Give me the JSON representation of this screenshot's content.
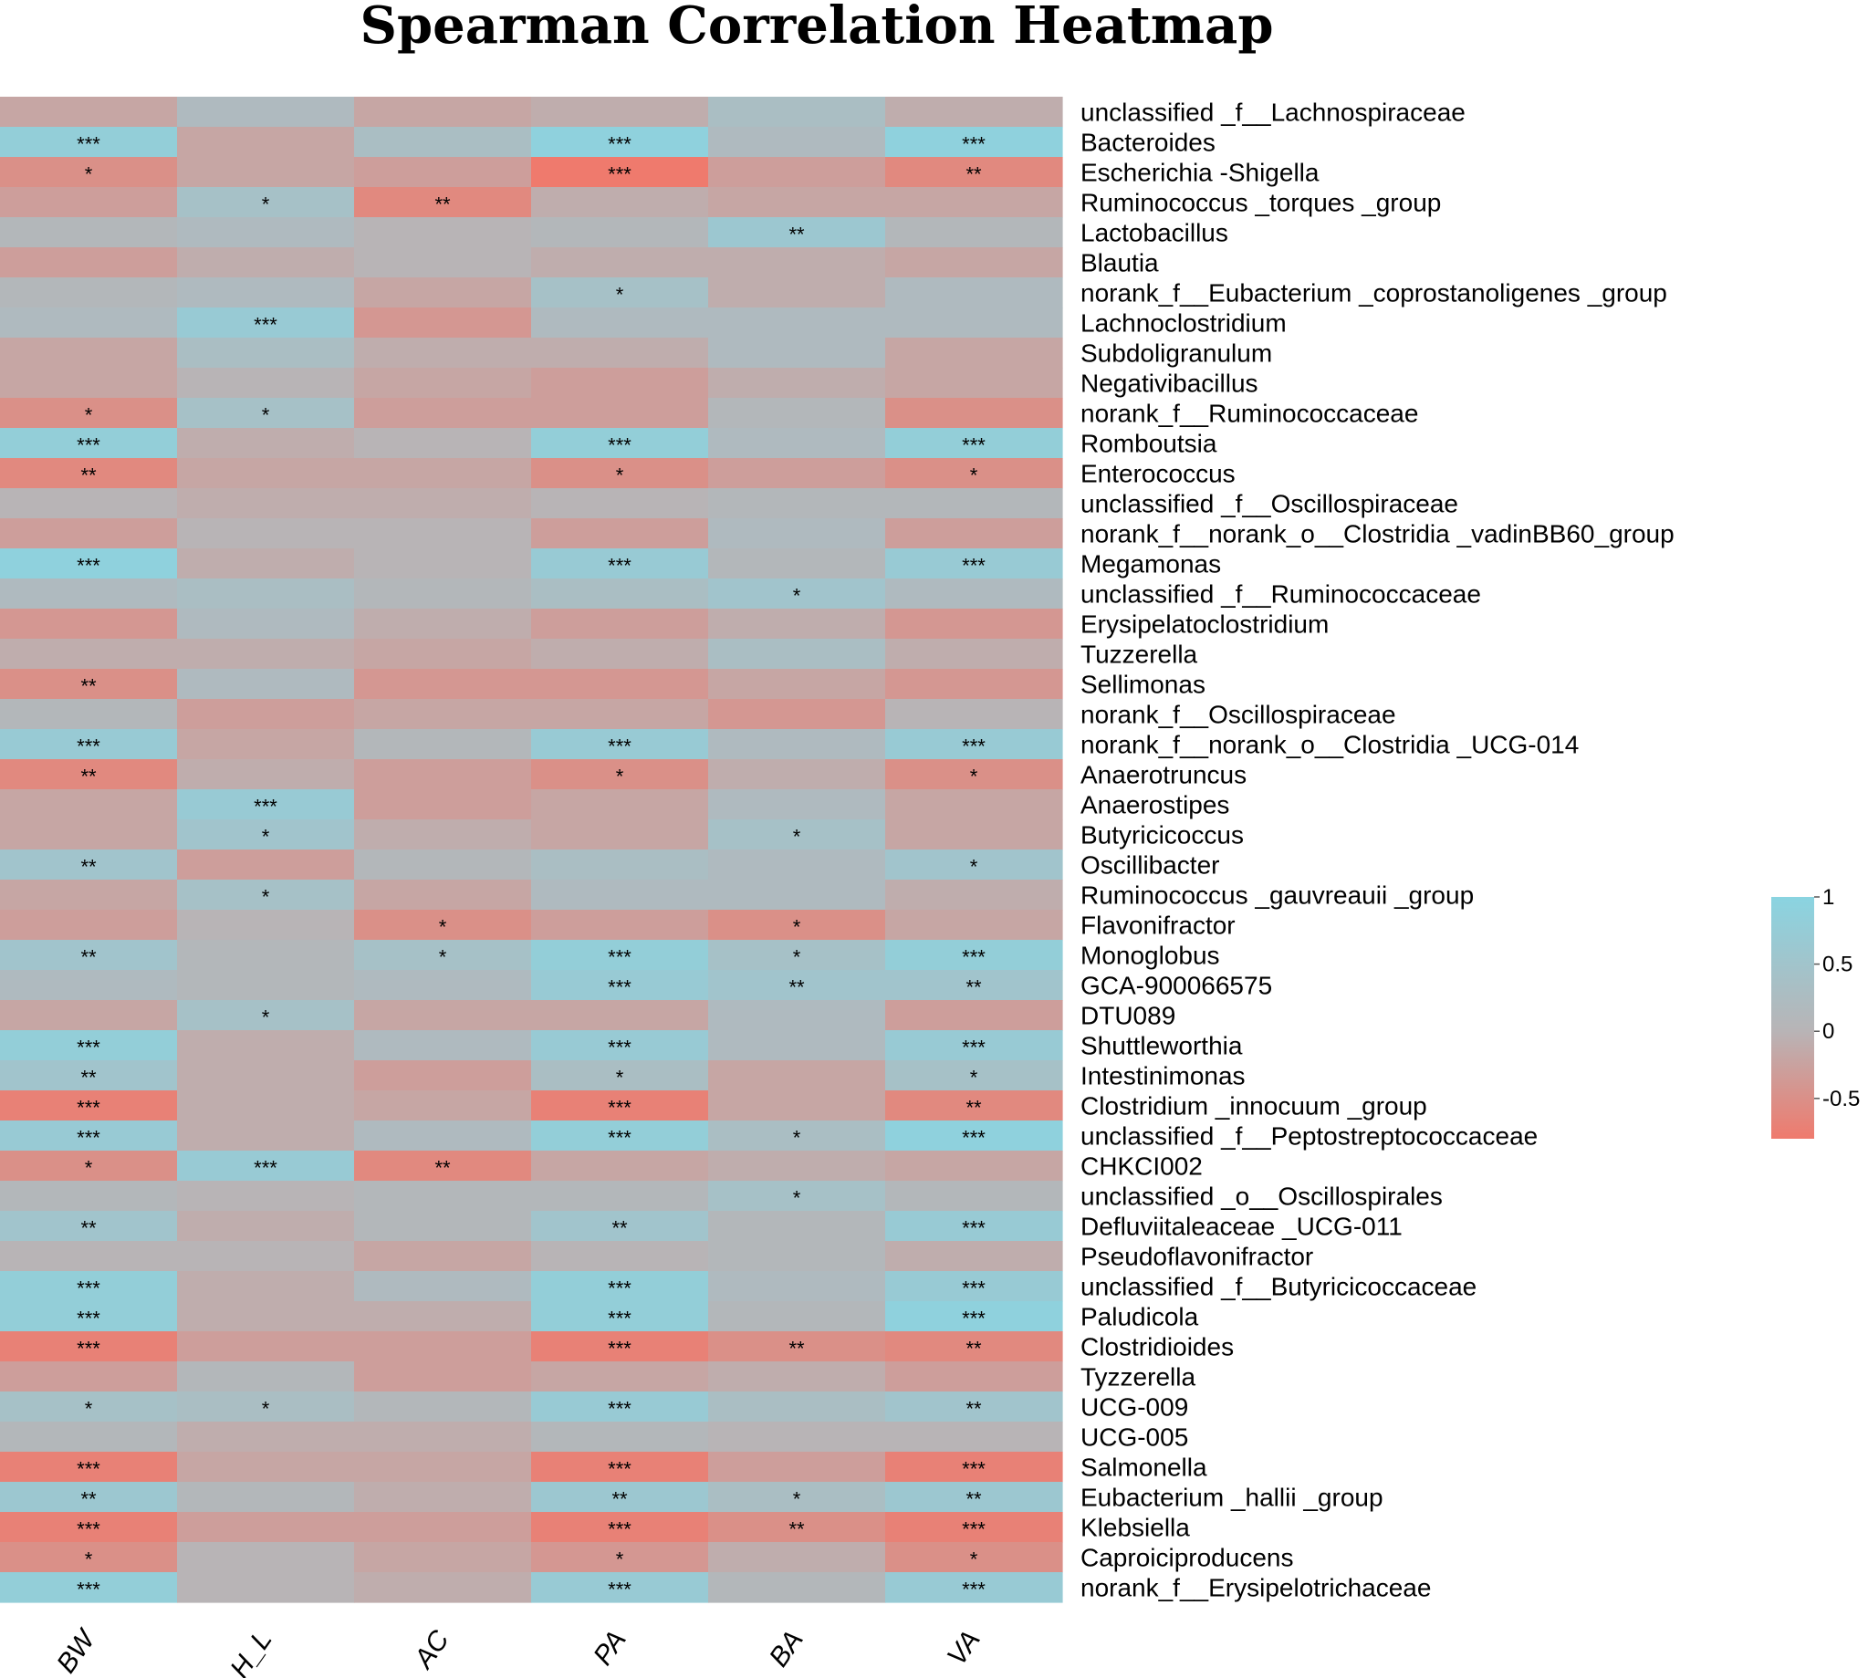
{
  "chart_data": {
    "type": "heatmap",
    "title": "Spearman Correlation Heatmap",
    "columns": [
      "BW",
      "H_L",
      "AC",
      "PA",
      "BA",
      "VA"
    ],
    "rows": [
      {
        "label": "unclassified _f__Lachnospiraceae",
        "values": [
          -0.2,
          0.2,
          -0.2,
          -0.1,
          0.3,
          -0.1
        ],
        "stars": [
          "",
          "",
          "",
          "",
          "",
          ""
        ]
      },
      {
        "label": "Bacteroides",
        "values": [
          0.8,
          -0.2,
          0.3,
          0.9,
          0.2,
          0.9
        ],
        "stars": [
          "***",
          "",
          "",
          "***",
          "",
          "***"
        ]
      },
      {
        "label": "Escherichia -Shigella",
        "values": [
          -0.5,
          -0.2,
          -0.3,
          -0.8,
          -0.3,
          -0.6
        ],
        "stars": [
          "*",
          "",
          "",
          "***",
          "",
          "**"
        ]
      },
      {
        "label": "Ruminococcus _torques _group",
        "values": [
          -0.3,
          0.4,
          -0.6,
          -0.1,
          -0.2,
          -0.2
        ],
        "stars": [
          "",
          "*",
          "**",
          "",
          "",
          ""
        ]
      },
      {
        "label": "Lactobacillus",
        "values": [
          0.1,
          0.2,
          0.0,
          0.1,
          0.6,
          0.1
        ],
        "stars": [
          "",
          "",
          "",
          "",
          "**",
          ""
        ]
      },
      {
        "label": "Blautia",
        "values": [
          -0.3,
          -0.1,
          0.0,
          -0.1,
          -0.1,
          -0.2
        ],
        "stars": [
          "",
          "",
          "",
          "",
          "",
          ""
        ]
      },
      {
        "label": "norank_f__Eubacterium _coprostanoligenes _group",
        "values": [
          0.1,
          0.2,
          -0.2,
          0.4,
          -0.1,
          0.2
        ],
        "stars": [
          "",
          "",
          "",
          "*",
          "",
          ""
        ]
      },
      {
        "label": "Lachnoclostridium",
        "values": [
          0.2,
          0.7,
          -0.4,
          0.2,
          0.2,
          0.2
        ],
        "stars": [
          "",
          "***",
          "",
          "",
          "",
          ""
        ]
      },
      {
        "label": "Subdoligranulum",
        "values": [
          -0.2,
          0.3,
          -0.1,
          -0.1,
          0.2,
          -0.2
        ],
        "stars": [
          "",
          "",
          "",
          "",
          "",
          ""
        ]
      },
      {
        "label": "Negativibacillus",
        "values": [
          -0.2,
          0.0,
          -0.2,
          -0.3,
          -0.1,
          -0.2
        ],
        "stars": [
          "",
          "",
          "",
          "",
          "",
          ""
        ]
      },
      {
        "label": "norank_f__Ruminococcaceae",
        "values": [
          -0.5,
          0.4,
          -0.3,
          -0.3,
          0.1,
          -0.5
        ],
        "stars": [
          "*",
          "*",
          "",
          "",
          "",
          ""
        ]
      },
      {
        "label": "Romboutsia",
        "values": [
          0.8,
          -0.1,
          0.0,
          0.8,
          0.2,
          0.8
        ],
        "stars": [
          "***",
          "",
          "",
          "***",
          "",
          "***"
        ]
      },
      {
        "label": "Enterococcus",
        "values": [
          -0.6,
          -0.2,
          -0.2,
          -0.5,
          -0.3,
          -0.5
        ],
        "stars": [
          "**",
          "",
          "",
          "*",
          "",
          "*"
        ]
      },
      {
        "label": "unclassified _f__Oscillospiraceae",
        "values": [
          0.0,
          -0.1,
          -0.1,
          0.0,
          0.1,
          0.1
        ],
        "stars": [
          "",
          "",
          "",
          "",
          "",
          ""
        ]
      },
      {
        "label": "norank_f__norank_o__Clostridia _vadinBB60_group",
        "values": [
          -0.3,
          0.0,
          0.0,
          -0.3,
          0.2,
          -0.3
        ],
        "stars": [
          "",
          "",
          "",
          "",
          "",
          ""
        ]
      },
      {
        "label": "Megamonas",
        "values": [
          0.9,
          -0.1,
          0.0,
          0.7,
          0.1,
          0.7
        ],
        "stars": [
          "***",
          "",
          "",
          "***",
          "",
          "***"
        ]
      },
      {
        "label": "unclassified _f__Ruminococcaceae",
        "values": [
          0.2,
          0.3,
          0.1,
          0.3,
          0.5,
          0.2
        ],
        "stars": [
          "",
          "",
          "",
          "",
          "*",
          ""
        ]
      },
      {
        "label": "Erysipelatoclostridium",
        "values": [
          -0.4,
          0.2,
          -0.1,
          -0.3,
          -0.1,
          -0.4
        ],
        "stars": [
          "",
          "",
          "",
          "",
          "",
          ""
        ]
      },
      {
        "label": "Tuzzerella",
        "values": [
          -0.1,
          -0.1,
          -0.2,
          -0.1,
          0.3,
          -0.1
        ],
        "stars": [
          "",
          "",
          "",
          "",
          "",
          ""
        ]
      },
      {
        "label": "Sellimonas",
        "values": [
          -0.5,
          0.2,
          -0.4,
          -0.4,
          -0.2,
          -0.4
        ],
        "stars": [
          "**",
          "",
          "",
          "",
          "",
          ""
        ]
      },
      {
        "label": "norank_f__Oscillospiraceae",
        "values": [
          0.1,
          -0.3,
          -0.2,
          -0.2,
          -0.4,
          0.0
        ],
        "stars": [
          "",
          "",
          "",
          "",
          "",
          ""
        ]
      },
      {
        "label": "norank_f__norank_o__Clostridia _UCG-014",
        "values": [
          0.7,
          -0.2,
          0.1,
          0.7,
          0.2,
          0.7
        ],
        "stars": [
          "***",
          "",
          "",
          "***",
          "",
          "***"
        ]
      },
      {
        "label": "Anaerotruncus",
        "values": [
          -0.6,
          -0.1,
          -0.3,
          -0.5,
          -0.1,
          -0.5
        ],
        "stars": [
          "**",
          "",
          "",
          "*",
          "",
          "*"
        ]
      },
      {
        "label": "Anaerostipes",
        "values": [
          -0.2,
          0.7,
          -0.3,
          -0.2,
          0.2,
          -0.2
        ],
        "stars": [
          "",
          "***",
          "",
          "",
          "",
          ""
        ]
      },
      {
        "label": "Butyricicoccus",
        "values": [
          -0.2,
          0.5,
          -0.1,
          -0.2,
          0.4,
          -0.2
        ],
        "stars": [
          "",
          "*",
          "",
          "",
          "*",
          ""
        ]
      },
      {
        "label": "Oscillibacter",
        "values": [
          0.5,
          -0.3,
          0.1,
          0.3,
          0.2,
          0.5
        ],
        "stars": [
          "**",
          "",
          "",
          "",
          "",
          "*"
        ]
      },
      {
        "label": "Ruminococcus _gauvreauii _group",
        "values": [
          -0.2,
          0.4,
          -0.2,
          0.2,
          0.2,
          -0.1
        ],
        "stars": [
          "",
          "*",
          "",
          "",
          "",
          ""
        ]
      },
      {
        "label": "Flavonifractor",
        "values": [
          -0.3,
          0.0,
          -0.5,
          -0.3,
          -0.5,
          -0.2
        ],
        "stars": [
          "",
          "",
          "*",
          "",
          "*",
          ""
        ]
      },
      {
        "label": "Monoglobus",
        "values": [
          0.5,
          0.1,
          0.4,
          0.8,
          0.4,
          0.8
        ],
        "stars": [
          "**",
          "",
          "*",
          "***",
          "*",
          "***"
        ]
      },
      {
        "label": "GCA-900066575",
        "values": [
          0.2,
          0.1,
          0.2,
          0.7,
          0.5,
          0.5
        ],
        "stars": [
          "",
          "",
          "",
          "***",
          "**",
          "**"
        ]
      },
      {
        "label": "DTU089",
        "values": [
          -0.2,
          0.4,
          -0.2,
          -0.2,
          0.2,
          -0.3
        ],
        "stars": [
          "",
          "*",
          "",
          "",
          "",
          ""
        ]
      },
      {
        "label": "Shuttleworthia",
        "values": [
          0.8,
          -0.1,
          0.2,
          0.7,
          0.2,
          0.7
        ],
        "stars": [
          "***",
          "",
          "",
          "***",
          "",
          "***"
        ]
      },
      {
        "label": "Intestinimonas",
        "values": [
          0.5,
          -0.1,
          -0.3,
          0.3,
          -0.2,
          0.4
        ],
        "stars": [
          "**",
          "",
          "",
          "*",
          "",
          "*"
        ]
      },
      {
        "label": "Clostridium _innocuum _group",
        "values": [
          -0.7,
          -0.1,
          -0.2,
          -0.7,
          -0.2,
          -0.6
        ],
        "stars": [
          "***",
          "",
          "",
          "***",
          "",
          "**"
        ]
      },
      {
        "label": "unclassified _f__Peptostreptococcaceae",
        "values": [
          0.7,
          -0.1,
          0.2,
          0.8,
          0.3,
          0.9
        ],
        "stars": [
          "***",
          "",
          "",
          "***",
          "*",
          "***"
        ]
      },
      {
        "label": "CHKCI002",
        "values": [
          -0.5,
          0.7,
          -0.6,
          -0.2,
          -0.1,
          -0.2
        ],
        "stars": [
          "*",
          "***",
          "**",
          "",
          "",
          ""
        ]
      },
      {
        "label": "unclassified _o__Oscillospirales",
        "values": [
          0.1,
          0.0,
          0.1,
          0.1,
          0.4,
          0.1
        ],
        "stars": [
          "",
          "",
          "",
          "",
          "*",
          ""
        ]
      },
      {
        "label": "Defluviitaleaceae _UCG-011",
        "values": [
          0.5,
          -0.1,
          0.1,
          0.5,
          0.1,
          0.7
        ],
        "stars": [
          "**",
          "",
          "",
          "**",
          "",
          "***"
        ]
      },
      {
        "label": "Pseudoflavonifractor",
        "values": [
          0.0,
          0.0,
          -0.2,
          0.0,
          0.1,
          -0.1
        ],
        "stars": [
          "",
          "",
          "",
          "",
          "",
          ""
        ]
      },
      {
        "label": "unclassified _f__Butyricicoccaceae",
        "values": [
          0.8,
          -0.1,
          0.2,
          0.8,
          0.2,
          0.7
        ],
        "stars": [
          "***",
          "",
          "",
          "***",
          "",
          "***"
        ]
      },
      {
        "label": "Paludicola",
        "values": [
          0.8,
          -0.1,
          -0.1,
          0.8,
          0.1,
          0.9
        ],
        "stars": [
          "***",
          "",
          "",
          "***",
          "",
          "***"
        ]
      },
      {
        "label": "Clostridioides",
        "values": [
          -0.7,
          -0.3,
          -0.3,
          -0.7,
          -0.5,
          -0.6
        ],
        "stars": [
          "***",
          "",
          "",
          "***",
          "**",
          "**"
        ]
      },
      {
        "label": "Tyzzerella",
        "values": [
          -0.3,
          0.1,
          -0.3,
          -0.2,
          -0.1,
          -0.3
        ],
        "stars": [
          "",
          "",
          "",
          "",
          "",
          ""
        ]
      },
      {
        "label": "UCG-009",
        "values": [
          0.4,
          0.3,
          0.1,
          0.7,
          0.3,
          0.5
        ],
        "stars": [
          "*",
          "*",
          "",
          "***",
          "",
          "**"
        ]
      },
      {
        "label": "UCG-005",
        "values": [
          0.1,
          -0.1,
          -0.1,
          0.1,
          0.0,
          0.0
        ],
        "stars": [
          "",
          "",
          "",
          "",
          "",
          ""
        ]
      },
      {
        "label": "Salmonella",
        "values": [
          -0.7,
          -0.2,
          -0.2,
          -0.7,
          -0.3,
          -0.7
        ],
        "stars": [
          "***",
          "",
          "",
          "***",
          "",
          "***"
        ]
      },
      {
        "label": "Eubacterium _hallii _group",
        "values": [
          0.6,
          0.1,
          -0.1,
          0.6,
          0.3,
          0.6
        ],
        "stars": [
          "**",
          "",
          "",
          "**",
          "*",
          "**"
        ]
      },
      {
        "label": "Klebsiella",
        "values": [
          -0.7,
          -0.3,
          -0.3,
          -0.7,
          -0.5,
          -0.7
        ],
        "stars": [
          "***",
          "",
          "",
          "***",
          "**",
          "***"
        ]
      },
      {
        "label": "Caproiciproducens",
        "values": [
          -0.5,
          0.0,
          -0.2,
          -0.4,
          -0.1,
          -0.5
        ],
        "stars": [
          "*",
          "",
          "",
          "*",
          "",
          "*"
        ]
      },
      {
        "label": "norank_f__Erysipelotrichaceae",
        "values": [
          0.8,
          0.0,
          -0.1,
          0.7,
          0.1,
          0.7
        ],
        "stars": [
          "***",
          "",
          "",
          "***",
          "",
          "***"
        ]
      }
    ],
    "color_scale": {
      "min": -0.8,
      "mid": 0.0,
      "max": 1.0,
      "low_color": "#ef7a6d",
      "mid_color": "#b8b4b6",
      "high_color": "#8ad4e1",
      "ticks": [
        "1",
        "0.5",
        "0",
        "-0.5"
      ],
      "tick_values": [
        1,
        0.5,
        0,
        -0.5
      ]
    }
  }
}
